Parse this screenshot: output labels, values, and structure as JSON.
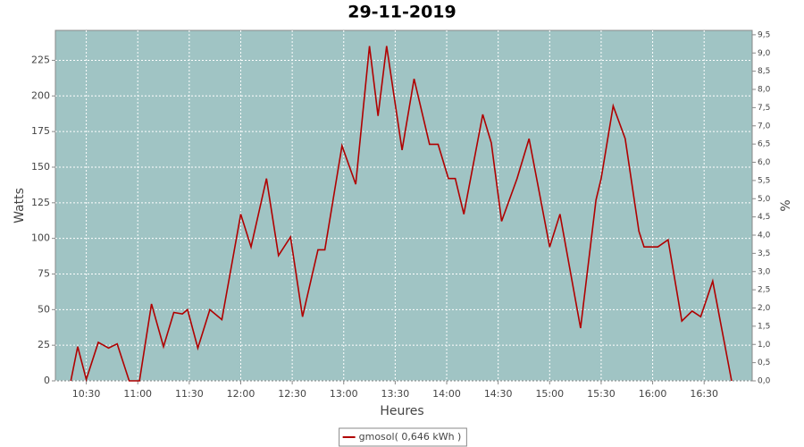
{
  "chart_data": {
    "type": "line",
    "title": "29-11-2019",
    "x_label": "Heures",
    "y_label": "Watts",
    "y2_label": "%",
    "x": [
      "10:21",
      "10:25",
      "10:30",
      "10:37",
      "10:43",
      "10:48",
      "10:55",
      "11:01",
      "11:08",
      "11:15",
      "11:21",
      "11:26",
      "11:29",
      "11:35",
      "11:42",
      "11:49",
      "12:00",
      "12:06",
      "12:15",
      "12:22",
      "12:29",
      "12:36",
      "12:45",
      "12:49",
      "12:59",
      "13:07",
      "13:15",
      "13:20",
      "13:25",
      "13:34",
      "13:41",
      "13:50",
      "13:55",
      "14:01",
      "14:05",
      "14:10",
      "14:21",
      "14:26",
      "14:32",
      "14:41",
      "14:48",
      "15:00",
      "15:06",
      "15:18",
      "15:27",
      "15:30",
      "15:37",
      "15:44",
      "15:52",
      "15:55",
      "16:03",
      "16:09",
      "16:17",
      "16:23",
      "16:28",
      "16:35",
      "16:46"
    ],
    "series": [
      {
        "name": "gmosol( 0,646 kWh )",
        "color": "#b00000",
        "values": [
          0,
          24,
          1,
          27,
          23,
          26,
          0,
          0,
          54,
          24,
          48,
          47,
          50,
          23,
          50,
          43,
          117,
          94,
          142,
          88,
          101,
          45,
          92,
          92,
          165,
          138,
          235,
          186,
          235,
          162,
          212,
          166,
          166,
          142,
          142,
          117,
          187,
          167,
          112,
          142,
          170,
          94,
          117,
          37,
          127,
          142,
          193,
          170,
          105,
          94,
          94,
          99,
          42,
          49,
          45,
          70,
          0
        ]
      }
    ],
    "xlim": [
      "10:12",
      "16:58"
    ],
    "xticks": [
      "10:30",
      "11:00",
      "11:30",
      "12:00",
      "12:30",
      "13:00",
      "13:30",
      "14:00",
      "14:30",
      "15:00",
      "15:30",
      "16:00",
      "16:30"
    ],
    "ylim": [
      0,
      246
    ],
    "yticks": [
      0,
      25,
      50,
      75,
      100,
      125,
      150,
      175,
      200,
      225
    ],
    "y2lim": [
      0,
      9.62
    ],
    "y2ticks": [
      {
        "value": 0,
        "label": "0,0"
      },
      {
        "value": 0.5,
        "label": "0,5"
      },
      {
        "value": 1,
        "label": "1,0"
      },
      {
        "value": 1.5,
        "label": "1,5"
      },
      {
        "value": 2,
        "label": "2,0"
      },
      {
        "value": 2.5,
        "label": "2,5"
      },
      {
        "value": 3,
        "label": "3,0"
      },
      {
        "value": 3.5,
        "label": "3,5"
      },
      {
        "value": 4,
        "label": "4,0"
      },
      {
        "value": 4.5,
        "label": "4,5"
      },
      {
        "value": 5,
        "label": "5,0"
      },
      {
        "value": 5.5,
        "label": "5,5"
      },
      {
        "value": 6,
        "label": "6,0"
      },
      {
        "value": 6.5,
        "label": "6,5"
      },
      {
        "value": 7,
        "label": "7,0"
      },
      {
        "value": 7.5,
        "label": "7,5"
      },
      {
        "value": 8,
        "label": "8,0"
      },
      {
        "value": 8.5,
        "label": "8,5"
      },
      {
        "value": 9,
        "label": "9,0"
      },
      {
        "value": 9.5,
        "label": "9,5"
      }
    ],
    "grid": true,
    "plot_background": "#a0c4c4",
    "legend": "bottom"
  }
}
